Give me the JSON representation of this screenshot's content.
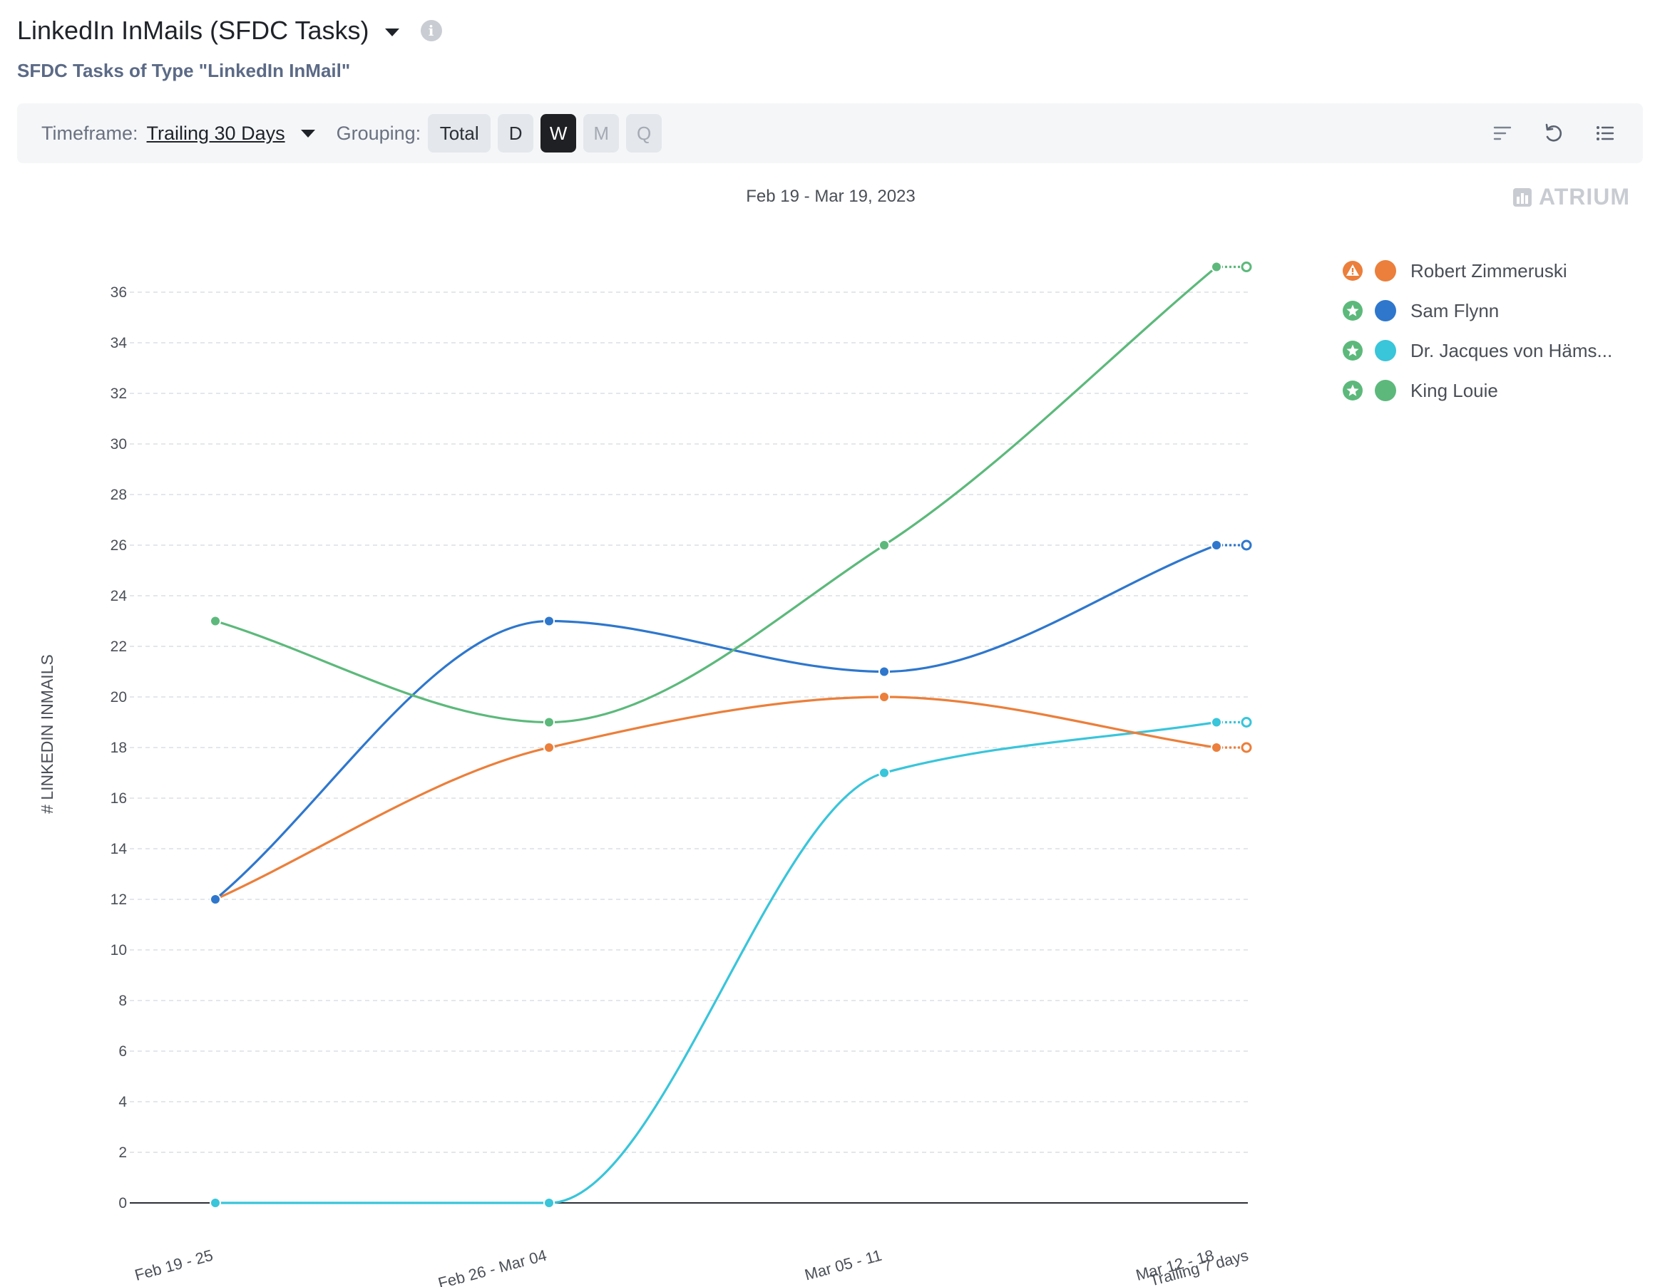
{
  "header": {
    "title": "LinkedIn InMails (SFDC Tasks)",
    "subtitle": "SFDC Tasks of Type \"LinkedIn InMail\""
  },
  "toolbar": {
    "timeframe_label": "Timeframe:",
    "timeframe_value": "Trailing 30 Days",
    "grouping_label": "Grouping:",
    "grouping_options": [
      "Total",
      "D",
      "W",
      "M",
      "Q"
    ],
    "grouping_selected": "W",
    "icons": [
      "sort-icon",
      "undo-icon",
      "list-icon"
    ]
  },
  "date_range": "Feb 19 - Mar 19, 2023",
  "brand": "ATRIUM",
  "chart_data": {
    "type": "line",
    "ylabel": "# LINKEDIN INMAILS",
    "ylim": [
      0,
      36
    ],
    "yticks": [
      0,
      2,
      4,
      6,
      8,
      10,
      12,
      14,
      16,
      18,
      20,
      22,
      24,
      26,
      28,
      30,
      32,
      34,
      36
    ],
    "categories": [
      "Feb 19 - 25",
      "Feb 26 - Mar 04",
      "Mar 05 - 11",
      "Mar 12 - 18"
    ],
    "trailing_label": "Trailing 7 days",
    "grid": true,
    "legend_position": "right",
    "series": [
      {
        "name": "Robert Zimmeruski",
        "color": "#eb7f3b",
        "values": [
          12,
          18,
          20,
          18
        ],
        "trailing": 18,
        "badge": "warning-icon",
        "badge_color": "#eb7f3b"
      },
      {
        "name": "Sam Flynn",
        "color": "#2e77cd",
        "values": [
          12,
          23,
          21,
          26
        ],
        "trailing": 26,
        "badge": "star-icon",
        "badge_color": "#5cb97b"
      },
      {
        "name": "Dr. Jacques von Häms...",
        "color": "#39c5da",
        "values": [
          0,
          0,
          17,
          19
        ],
        "trailing": 19,
        "badge": "star-icon",
        "badge_color": "#5cb97b"
      },
      {
        "name": "King Louie",
        "color": "#5cb97b",
        "values": [
          23,
          19,
          26,
          37
        ],
        "trailing": 37,
        "badge": "star-icon",
        "badge_color": "#5cb97b"
      }
    ]
  }
}
